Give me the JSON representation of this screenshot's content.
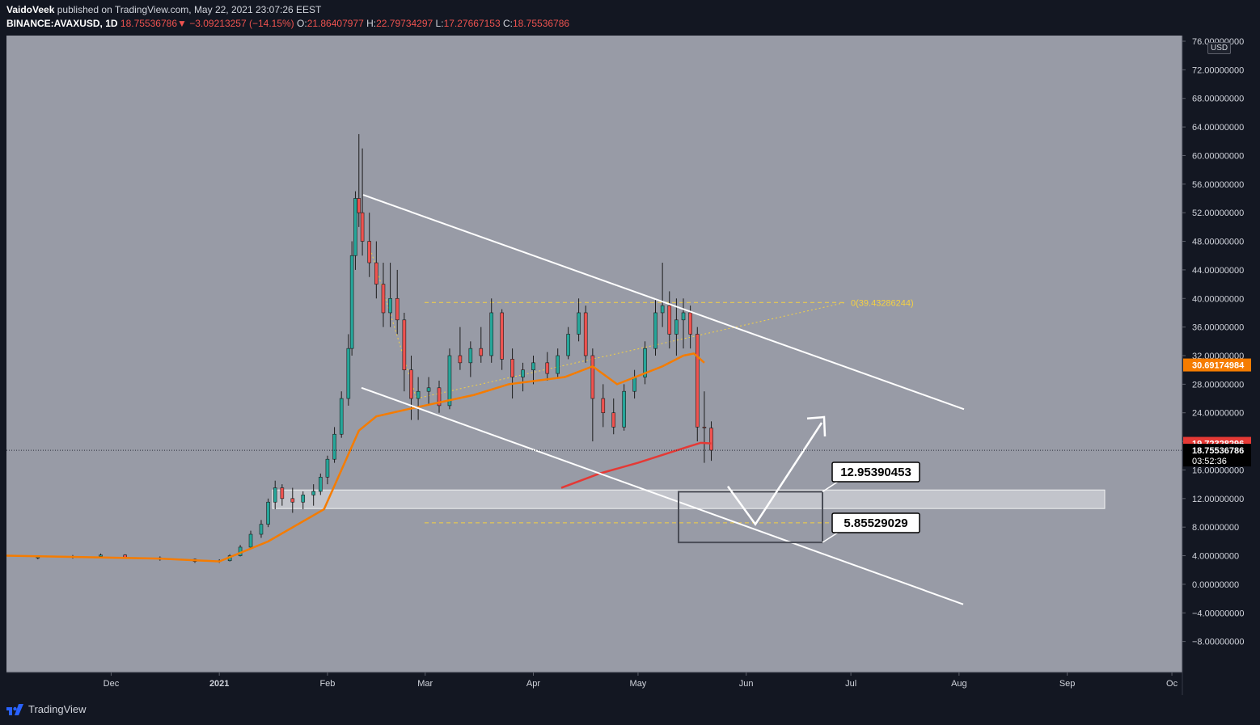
{
  "header": {
    "author": "VaidoVeek",
    "published_text": "published on TradingView.com, May 22, 2021 23:07:26 EEST",
    "symbol": "BINANCE:AVAXUSD, 1D",
    "last": "18.75536786",
    "change": "−3.09213257 (−14.15%)",
    "o_label": "O:",
    "open": "21.86407977",
    "h_label": "H:",
    "high": "22.79734297",
    "l_label": "L:",
    "low": "17.27667153",
    "c_label": "C:",
    "close": "18.75536786"
  },
  "currency_badge": "USD",
  "footer": {
    "brand": "TradingView"
  },
  "colors": {
    "background": "#989ba6",
    "up": "#26a69a",
    "down": "#ef5350",
    "ma_orange": "#f57c00",
    "ma_red": "#e53935",
    "fib_yellow": "#f5d142",
    "annotation_white": "#ffffff"
  },
  "chart_data": {
    "type": "candlestick",
    "symbol": "BINANCE:AVAXUSD",
    "interval": "1D",
    "y_axis": {
      "ylim": [
        -12,
        76
      ],
      "ticks": [
        76,
        72,
        68,
        64,
        60,
        56,
        52,
        48,
        44,
        40,
        36,
        32,
        28,
        24,
        20,
        16,
        12,
        8,
        4,
        0,
        -4,
        -8
      ],
      "tick_labels": [
        "76.00000000",
        "72.00000000",
        "68.00000000",
        "64.00000000",
        "60.00000000",
        "56.00000000",
        "52.00000000",
        "48.00000000",
        "44.00000000",
        "40.00000000",
        "36.00000000",
        "32.00000000",
        "28.00000000",
        "24.00000000",
        "20.00000000",
        "16.00000000",
        "12.00000000",
        "8.00000000",
        "4.00000000",
        "0.00000000",
        "−4.00000000",
        "−8.00000000"
      ]
    },
    "x_axis": {
      "start": "2020-11-01",
      "months": [
        {
          "label": "Dec",
          "date": "2020-12-01"
        },
        {
          "label": "2021",
          "date": "2021-01-01"
        },
        {
          "label": "Feb",
          "date": "2021-02-01"
        },
        {
          "label": "Mar",
          "date": "2021-03-01"
        },
        {
          "label": "Apr",
          "date": "2021-04-01"
        },
        {
          "label": "May",
          "date": "2021-05-01"
        },
        {
          "label": "Jun",
          "date": "2021-06-01"
        },
        {
          "label": "Jul",
          "date": "2021-07-01"
        },
        {
          "label": "Aug",
          "date": "2021-08-01"
        },
        {
          "label": "Sep",
          "date": "2021-09-01"
        },
        {
          "label": "Oc",
          "date": "2021-10-01"
        }
      ]
    },
    "price_tags": [
      {
        "value": 30.69174984,
        "label": "30.69174984",
        "color": "#f57c00"
      },
      {
        "value": 19.72328296,
        "label": "19.72328296",
        "color": "#e53935"
      },
      {
        "value": 18.75536786,
        "label": "18.75536786",
        "sublabel": "03:52:36",
        "color": "#000000"
      }
    ],
    "moving_averages": [
      {
        "color": "#f57c00",
        "points": [
          [
            "2020-11-01",
            4
          ],
          [
            "2020-12-15",
            3.6
          ],
          [
            "2021-01-01",
            3.2
          ],
          [
            "2021-01-15",
            6
          ],
          [
            "2021-01-31",
            10.5
          ],
          [
            "2021-02-05",
            16
          ],
          [
            "2021-02-10",
            21.5
          ],
          [
            "2021-02-15",
            23.5
          ],
          [
            "2021-02-24",
            24.5
          ],
          [
            "2021-03-15",
            26.5
          ],
          [
            "2021-03-25",
            28
          ],
          [
            "2021-04-10",
            29
          ],
          [
            "2021-04-18",
            30.5
          ],
          [
            "2021-04-25",
            28
          ],
          [
            "2021-05-08",
            30.5
          ],
          [
            "2021-05-14",
            32
          ],
          [
            "2021-05-17",
            32.3
          ],
          [
            "2021-05-20",
            31
          ]
        ]
      },
      {
        "color": "#e53935",
        "points": [
          [
            "2021-04-09",
            13.5
          ],
          [
            "2021-04-20",
            15.5
          ],
          [
            "2021-05-01",
            17
          ],
          [
            "2021-05-15",
            19.2
          ],
          [
            "2021-05-19",
            19.8
          ],
          [
            "2021-05-22",
            19.72
          ]
        ]
      }
    ],
    "candles": [
      [
        "2020-11-10",
        3.7,
        3.9,
        3.5,
        3.8
      ],
      [
        "2020-11-20",
        3.8,
        4.1,
        3.6,
        3.9
      ],
      [
        "2020-11-28",
        3.9,
        4.3,
        3.7,
        4.1
      ],
      [
        "2020-12-05",
        4.1,
        4.2,
        3.6,
        3.7
      ],
      [
        "2020-12-15",
        3.7,
        3.9,
        3.3,
        3.5
      ],
      [
        "2020-12-25",
        3.5,
        3.6,
        3.0,
        3.2
      ],
      [
        "2021-01-01",
        3.2,
        3.5,
        3.0,
        3.3
      ],
      [
        "2021-01-04",
        3.3,
        4.2,
        3.2,
        4.0
      ],
      [
        "2021-01-07",
        4.0,
        5.5,
        3.9,
        5.2
      ],
      [
        "2021-01-10",
        5.2,
        7.5,
        5.0,
        7.0
      ],
      [
        "2021-01-13",
        7.0,
        9.0,
        6.5,
        8.4
      ],
      [
        "2021-01-15",
        8.4,
        12.0,
        8.0,
        11.5
      ],
      [
        "2021-01-17",
        11.5,
        14.5,
        10.5,
        13.5
      ],
      [
        "2021-01-19",
        13.5,
        14.0,
        11.0,
        12.0
      ],
      [
        "2021-01-22",
        12.0,
        13.5,
        10.0,
        11.5
      ],
      [
        "2021-01-25",
        11.5,
        13.0,
        10.5,
        12.5
      ],
      [
        "2021-01-28",
        12.5,
        14.0,
        11.0,
        13.0
      ],
      [
        "2021-01-30",
        13.0,
        15.5,
        12.5,
        15.0
      ],
      [
        "2021-02-01",
        15.0,
        18.0,
        14.0,
        17.5
      ],
      [
        "2021-02-03",
        17.5,
        22.0,
        17.0,
        21.0
      ],
      [
        "2021-02-05",
        21.0,
        27.0,
        20.5,
        26.0
      ],
      [
        "2021-02-07",
        26.0,
        35.0,
        25.0,
        33.0
      ],
      [
        "2021-02-08",
        33.0,
        48.0,
        32.0,
        46.0
      ],
      [
        "2021-02-09",
        46.0,
        55.0,
        44.0,
        54.0
      ],
      [
        "2021-02-10",
        54.0,
        63.0,
        50.0,
        52.0
      ],
      [
        "2021-02-11",
        52.0,
        61.0,
        46.0,
        48.0
      ],
      [
        "2021-02-13",
        48.0,
        52.0,
        43.0,
        45.0
      ],
      [
        "2021-02-15",
        45.0,
        48.0,
        40.0,
        42.0
      ],
      [
        "2021-02-17",
        42.0,
        45.0,
        36.0,
        38.0
      ],
      [
        "2021-02-19",
        38.0,
        45.0,
        36.0,
        40.0
      ],
      [
        "2021-02-21",
        40.0,
        44.0,
        35.0,
        37.0
      ],
      [
        "2021-02-23",
        37.0,
        38.0,
        27.0,
        30.0
      ],
      [
        "2021-02-25",
        30.0,
        32.0,
        23.0,
        26.0
      ],
      [
        "2021-02-27",
        26.0,
        29.0,
        23.0,
        27.0
      ],
      [
        "2021-03-02",
        27.0,
        29.0,
        25.0,
        27.5
      ],
      [
        "2021-03-05",
        27.5,
        28.5,
        24.0,
        25.0
      ],
      [
        "2021-03-08",
        25.0,
        33.0,
        24.5,
        32.0
      ],
      [
        "2021-03-11",
        32.0,
        36.0,
        30.0,
        31.0
      ],
      [
        "2021-03-14",
        31.0,
        34.0,
        29.0,
        33.0
      ],
      [
        "2021-03-17",
        33.0,
        36.0,
        31.0,
        32.0
      ],
      [
        "2021-03-20",
        32.0,
        40.0,
        31.0,
        38.0
      ],
      [
        "2021-03-23",
        38.0,
        38.5,
        30.0,
        31.5
      ],
      [
        "2021-03-26",
        31.5,
        33.0,
        26.0,
        29.0
      ],
      [
        "2021-03-29",
        29.0,
        31.0,
        27.0,
        30.0
      ],
      [
        "2021-04-01",
        30.0,
        32.0,
        28.0,
        31.0
      ],
      [
        "2021-04-05",
        31.0,
        32.5,
        28.5,
        29.5
      ],
      [
        "2021-04-08",
        29.5,
        33.0,
        29.0,
        32.0
      ],
      [
        "2021-04-11",
        32.0,
        36.0,
        31.5,
        35.0
      ],
      [
        "2021-04-14",
        35.0,
        40.0,
        34.0,
        38.0
      ],
      [
        "2021-04-16",
        38.0,
        39.0,
        31.0,
        32.0
      ],
      [
        "2021-04-18",
        32.0,
        33.0,
        20.0,
        26.0
      ],
      [
        "2021-04-21",
        26.0,
        28.0,
        22.0,
        24.0
      ],
      [
        "2021-04-24",
        24.0,
        26.0,
        21.0,
        22.0
      ],
      [
        "2021-04-27",
        22.0,
        28.0,
        21.5,
        27.0
      ],
      [
        "2021-04-30",
        27.0,
        30.0,
        26.0,
        29.0
      ],
      [
        "2021-05-03",
        29.0,
        34.0,
        28.0,
        33.0
      ],
      [
        "2021-05-06",
        33.0,
        40.0,
        32.0,
        38.0
      ],
      [
        "2021-05-08",
        38.0,
        45.0,
        36.0,
        39.0
      ],
      [
        "2021-05-10",
        39.0,
        41.0,
        33.0,
        35.0
      ],
      [
        "2021-05-12",
        35.0,
        40.0,
        32.0,
        37.0
      ],
      [
        "2021-05-14",
        37.0,
        40.0,
        33.0,
        38.0
      ],
      [
        "2021-05-16",
        38.0,
        39.0,
        33.0,
        35.0
      ],
      [
        "2021-05-18",
        35.0,
        36.0,
        20.0,
        22.0
      ],
      [
        "2021-05-20",
        22.0,
        27.0,
        17.0,
        21.9
      ],
      [
        "2021-05-22",
        21.86,
        22.8,
        17.28,
        18.76
      ]
    ]
  },
  "annotations": {
    "fib_level_label": "0(39.43286244)",
    "box_top_label": "12.95390453",
    "box_bottom_label": "5.85529029"
  }
}
